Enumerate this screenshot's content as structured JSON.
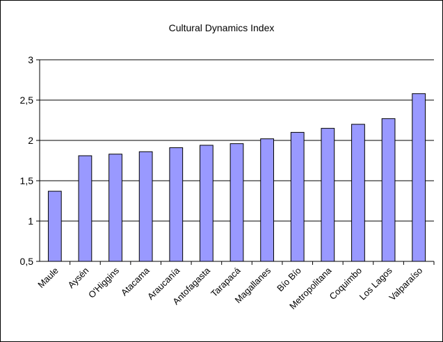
{
  "chart_data": {
    "type": "bar",
    "title": "Cultural Dynamics Index",
    "xlabel": "",
    "ylabel": "",
    "categories": [
      "Maule",
      "Aysén",
      "O'Higgins",
      "Atacama",
      "Araucanía",
      "Antofagasta",
      "Tarapacá",
      "Magallanes",
      "Bío Bío",
      "Metropolitana",
      "Coquimbo",
      "Los Lagos",
      "Valparaíso"
    ],
    "values": [
      1.37,
      1.81,
      1.83,
      1.86,
      1.91,
      1.94,
      1.96,
      2.02,
      2.1,
      2.15,
      2.2,
      2.27,
      2.58
    ],
    "ylim": [
      0.5,
      3
    ],
    "yticks": [
      "0,5",
      "1",
      "1,5",
      "2",
      "2,5",
      "3"
    ],
    "grid": true,
    "legend": "none",
    "colors": {
      "bar_fill": "#9999ff",
      "bar_stroke": "#000000",
      "grid": "#000000"
    }
  }
}
